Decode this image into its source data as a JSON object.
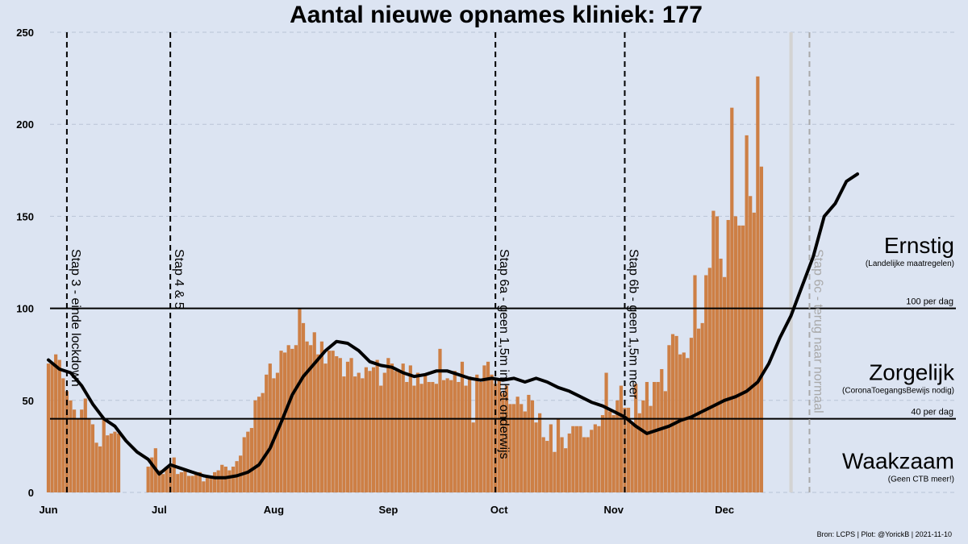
{
  "chart_data": {
    "type": "bar",
    "title": "Aantal nieuwe opnames kliniek:  177",
    "x_start": "2021-06-01",
    "x_ticks": [
      "Jun",
      "Jul",
      "Aug",
      "Sep",
      "Oct",
      "Nov",
      "Dec"
    ],
    "y_ticks": [
      "0",
      "50",
      "100",
      "150",
      "200",
      "250"
    ],
    "ylim": [
      0,
      250
    ],
    "grid": true,
    "bar_color": "#cd7f45",
    "incomplete_bar_color": "#d3d3d3",
    "line_color": "#000000",
    "series": [
      {
        "type": "bar",
        "values": [
          70,
          70,
          75,
          72,
          62,
          55,
          50,
          45,
          40,
          45,
          51,
          40,
          37,
          27,
          25,
          40,
          31,
          32,
          33,
          32,
          null,
          null,
          null,
          null,
          null,
          null,
          null,
          14,
          19,
          24,
          12,
          10,
          14,
          14,
          19,
          10,
          11,
          13,
          9,
          9,
          10,
          11,
          6,
          9,
          9,
          11,
          12,
          15,
          14,
          12,
          14,
          17,
          20,
          30,
          33,
          35,
          50,
          52,
          54,
          64,
          70,
          62,
          65,
          77,
          76,
          80,
          78,
          80,
          100,
          92,
          82,
          80,
          87,
          75,
          82,
          70,
          77,
          77,
          74,
          73,
          63,
          71,
          73,
          63,
          65,
          62,
          68,
          66,
          68,
          72,
          58,
          65,
          73,
          70,
          66,
          66,
          70,
          60,
          69,
          58,
          65,
          59,
          64,
          60,
          60,
          59,
          78,
          61,
          62,
          61,
          66,
          60,
          71,
          58,
          63,
          38,
          64,
          60,
          69,
          71,
          64,
          59,
          62,
          54,
          58,
          48,
          48,
          52,
          48,
          44,
          53,
          50,
          38,
          43,
          30,
          28,
          37,
          22,
          40,
          30,
          24,
          32,
          36,
          36,
          36,
          30,
          30,
          34,
          37,
          36,
          42,
          65,
          44,
          42,
          50,
          58,
          46,
          46,
          37,
          59,
          43,
          50,
          60,
          47,
          60,
          60,
          67,
          55,
          80,
          86,
          85,
          75,
          76,
          73,
          84,
          118,
          89,
          92,
          118,
          122,
          153,
          150,
          127,
          117,
          148,
          209,
          150,
          145,
          145,
          194,
          161,
          152,
          226,
          177
        ],
        "incomplete_tail": [
          null,
          null,
          null,
          null,
          null,
          null,
          null,
          null,
          null,
          null,
          null,
          null,
          null,
          null,
          null,
          null,
          null,
          null,
          null,
          null,
          null,
          null,
          null,
          null,
          null,
          null,
          null,
          null,
          null,
          null,
          null,
          null,
          null,
          null,
          null,
          null,
          null,
          null,
          null,
          null,
          null,
          null,
          null,
          null,
          null,
          null,
          null,
          null,
          null,
          null,
          null,
          null,
          null,
          null,
          null,
          null,
          null,
          null,
          null,
          null,
          null,
          null,
          null,
          null,
          null,
          null,
          null,
          null,
          null,
          null,
          null,
          null,
          null,
          null,
          null,
          null,
          null,
          null,
          null,
          null,
          null,
          null,
          null,
          null,
          null,
          null,
          null,
          null,
          null,
          null,
          null,
          null,
          null,
          null,
          null,
          null,
          null,
          null,
          null,
          null,
          null,
          null,
          null,
          null,
          null,
          null,
          null,
          null,
          null,
          null,
          null,
          null,
          null,
          null,
          null,
          null,
          null,
          null,
          null,
          null,
          null,
          null,
          null,
          null,
          null,
          null,
          null,
          null,
          null,
          null,
          null,
          null,
          null,
          null,
          null,
          null,
          null,
          null,
          null,
          null,
          null,
          null,
          null,
          null,
          null,
          null,
          null,
          null,
          null,
          null,
          null,
          null,
          null,
          null,
          null,
          null,
          null,
          null,
          null,
          null,
          null,
          null,
          null,
          null,
          null,
          null,
          null,
          null,
          null,
          null,
          null,
          null,
          null,
          null,
          null,
          null,
          null,
          null,
          null,
          null,
          null,
          null,
          null,
          null,
          null,
          null,
          null,
          null,
          null,
          null,
          null,
          null,
          null,
          null,
          null,
          null,
          null,
          null,
          null,
          null,
          null,
          250
        ]
      },
      {
        "type": "line",
        "points": [
          [
            0,
            72
          ],
          [
            3,
            67
          ],
          [
            6,
            65
          ],
          [
            9,
            58
          ],
          [
            12,
            48
          ],
          [
            15,
            40
          ],
          [
            18,
            36
          ],
          [
            21,
            28
          ],
          [
            24,
            22
          ],
          [
            27,
            18
          ],
          [
            30,
            10
          ],
          [
            33,
            15
          ],
          [
            36,
            13
          ],
          [
            39,
            11
          ],
          [
            42,
            9
          ],
          [
            45,
            8
          ],
          [
            48,
            8
          ],
          [
            51,
            9
          ],
          [
            54,
            11
          ],
          [
            57,
            15
          ],
          [
            60,
            24
          ],
          [
            63,
            38
          ],
          [
            66,
            53
          ],
          [
            69,
            63
          ],
          [
            72,
            70
          ],
          [
            75,
            77
          ],
          [
            78,
            82
          ],
          [
            81,
            81
          ],
          [
            84,
            77
          ],
          [
            87,
            71
          ],
          [
            90,
            69
          ],
          [
            93,
            68
          ],
          [
            96,
            65
          ],
          [
            99,
            63
          ],
          [
            102,
            64
          ],
          [
            105,
            66
          ],
          [
            108,
            66
          ],
          [
            111,
            64
          ],
          [
            114,
            62
          ],
          [
            117,
            61
          ],
          [
            120,
            62
          ],
          [
            123,
            61
          ],
          [
            126,
            62
          ],
          [
            129,
            60
          ],
          [
            132,
            62
          ],
          [
            135,
            60
          ],
          [
            138,
            57
          ],
          [
            141,
            55
          ],
          [
            144,
            52
          ],
          [
            147,
            49
          ],
          [
            150,
            47
          ],
          [
            153,
            44
          ],
          [
            156,
            41
          ],
          [
            159,
            36
          ],
          [
            162,
            32
          ],
          [
            165,
            34
          ],
          [
            168,
            36
          ],
          [
            171,
            39
          ],
          [
            174,
            41
          ],
          [
            177,
            44
          ],
          [
            180,
            47
          ],
          [
            183,
            50
          ],
          [
            186,
            52
          ],
          [
            189,
            55
          ],
          [
            192,
            60
          ],
          [
            195,
            70
          ],
          [
            198,
            84
          ],
          [
            201,
            96
          ],
          [
            204,
            112
          ],
          [
            207,
            128
          ],
          [
            210,
            150
          ],
          [
            213,
            157
          ],
          [
            216,
            169
          ],
          [
            219,
            173
          ]
        ]
      }
    ],
    "thresholds": [
      {
        "value": 100,
        "label": "100 per dag"
      },
      {
        "value": 40,
        "label": "40 per dag"
      }
    ],
    "events": [
      {
        "day": 5,
        "label": "Stap 3 - einde lockdown",
        "color": "#000000"
      },
      {
        "day": 33,
        "label": "Stap 4 & 5",
        "color": "#000000"
      },
      {
        "day": 121,
        "label": "Stap 6a - geen 1,5m in het onderwijs",
        "color": "#000000"
      },
      {
        "day": 156,
        "label": "Stap 6b - geen 1,5m meer",
        "color": "#000000"
      },
      {
        "day": 206,
        "label": "Stap 6c - terug naar normaal",
        "color": "#a9a9a9"
      }
    ],
    "zones": [
      {
        "name": "Ernstig",
        "sub": "(Landelijke maatregelen)",
        "at": 130
      },
      {
        "name": "Zorgelijk",
        "sub": "(CoronaToegangsBewijs nodig)",
        "at": 61
      },
      {
        "name": "Waakzaam",
        "sub": "(Geen CTB meer!)",
        "at": 13
      }
    ],
    "source": "Bron: LCPS | Plot: @YorickB |  2021-11-10"
  }
}
